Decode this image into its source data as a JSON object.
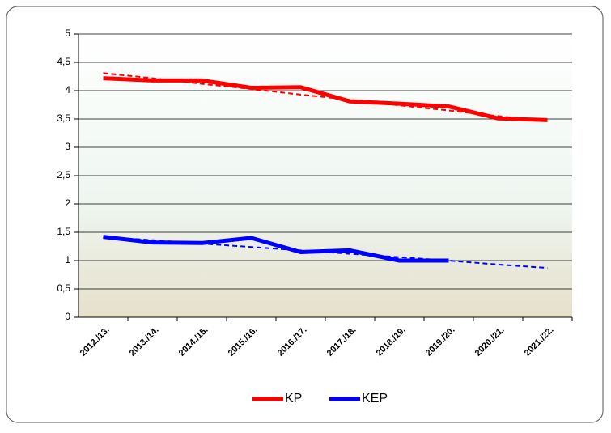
{
  "chart_data": {
    "type": "line",
    "categories": [
      "2012./13.",
      "2013./14.",
      "2014./15.",
      "2015./16.",
      "2016./17.",
      "2017./18.",
      "2018./19.",
      "2019./20.",
      "2020./21.",
      "2021./22."
    ],
    "series": [
      {
        "name": "KP",
        "color": "#ff0000",
        "values": [
          4.22,
          4.18,
          4.18,
          4.05,
          4.06,
          3.81,
          3.77,
          3.72,
          3.51,
          3.48
        ],
        "trend": [
          4.31,
          4.22,
          4.12,
          4.03,
          3.93,
          3.84,
          3.74,
          3.65,
          3.55,
          3.46
        ]
      },
      {
        "name": "KEP",
        "color": "#0000ff",
        "values": [
          1.42,
          1.32,
          1.31,
          1.4,
          1.15,
          1.18,
          1.0,
          1.0,
          null,
          null
        ],
        "trend": [
          1.42,
          1.36,
          1.3,
          1.24,
          1.18,
          1.12,
          1.06,
          1.0,
          0.93,
          0.87
        ]
      }
    ],
    "ylim": [
      0,
      5
    ],
    "yticks": [
      0,
      {
        "value": 0.5,
        "label": "0,5"
      },
      1,
      {
        "value": 1.5,
        "label": "1,5"
      },
      2,
      {
        "value": 2.5,
        "label": "2,5"
      },
      3,
      {
        "value": 3.5,
        "label": "3,5"
      },
      4,
      {
        "value": 4.5,
        "label": "4,5"
      },
      5
    ],
    "grid": true,
    "legend": "bottom"
  }
}
